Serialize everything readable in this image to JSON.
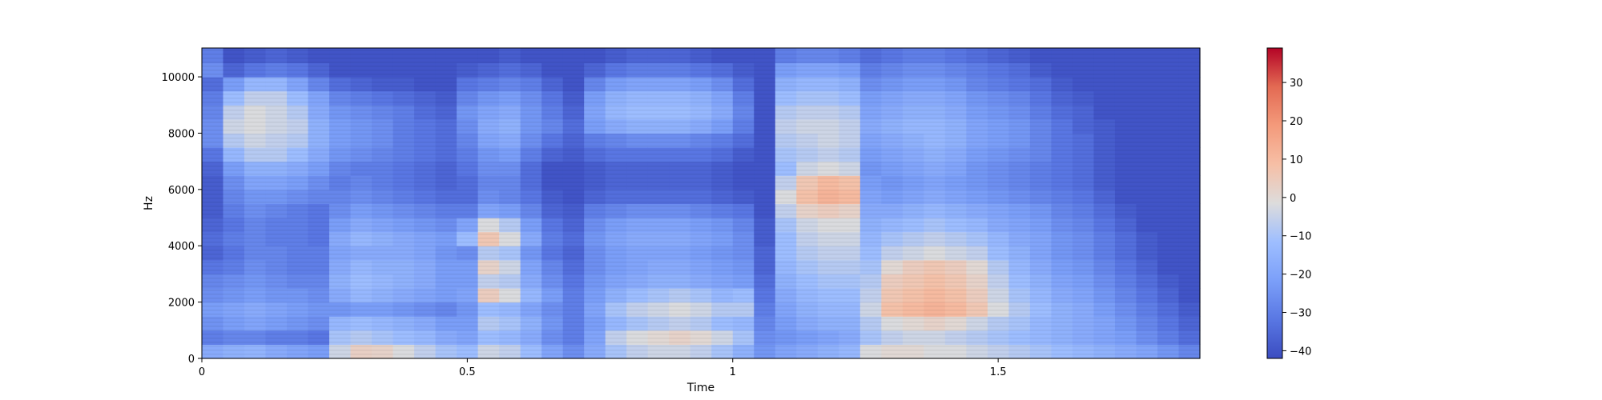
{
  "chart_data": {
    "type": "heatmap",
    "title": "",
    "xlabel": "Time",
    "ylabel": "Hz",
    "xlim": [
      0,
      1.88
    ],
    "ylim": [
      0,
      11025
    ],
    "x_ticks": [
      {
        "value": 0,
        "label": "0"
      },
      {
        "value": 0.5,
        "label": "0.5"
      },
      {
        "value": 1,
        "label": "1"
      },
      {
        "value": 1.5,
        "label": "1.5"
      }
    ],
    "y_ticks": [
      {
        "value": 0,
        "label": "0"
      },
      {
        "value": 2000,
        "label": "2000"
      },
      {
        "value": 4000,
        "label": "4000"
      },
      {
        "value": 6000,
        "label": "6000"
      },
      {
        "value": 8000,
        "label": "8000"
      },
      {
        "value": 10000,
        "label": "10000"
      }
    ],
    "colorbar": {
      "colormap": "coolwarm",
      "range": [
        -42,
        39
      ],
      "ticks": [
        {
          "value": 30,
          "label": "30"
        },
        {
          "value": 20,
          "label": "20"
        },
        {
          "value": 10,
          "label": "10"
        },
        {
          "value": 0,
          "label": "0"
        },
        {
          "value": -10,
          "label": "−10"
        },
        {
          "value": -20,
          "label": "−20"
        },
        {
          "value": -30,
          "label": "−30"
        },
        {
          "value": -40,
          "label": "−40"
        }
      ]
    },
    "time_bins": [
      0.0,
      0.04,
      0.08,
      0.12,
      0.16,
      0.2,
      0.24,
      0.28,
      0.32,
      0.36,
      0.4,
      0.44,
      0.48,
      0.52,
      0.56,
      0.6,
      0.64,
      0.68,
      0.72,
      0.76,
      0.8,
      0.84,
      0.88,
      0.92,
      0.96,
      1.0,
      1.04,
      1.08,
      1.12,
      1.16,
      1.2,
      1.24,
      1.28,
      1.32,
      1.36,
      1.4,
      1.44,
      1.48,
      1.52,
      1.56,
      1.6,
      1.64,
      1.68,
      1.72,
      1.76,
      1.8,
      1.84
    ],
    "frequency_bins": [
      0,
      500,
      1000,
      1500,
      2000,
      2500,
      3000,
      3500,
      4000,
      4500,
      5000,
      5500,
      6000,
      6500,
      7000,
      7500,
      8000,
      8500,
      9000,
      9500,
      10000,
      10500
    ],
    "values_db": [
      [
        -18,
        -30,
        -25,
        -22,
        -26,
        -28,
        -32,
        -36,
        -34,
        -36,
        -38,
        -38,
        -38,
        -36,
        -32,
        -26,
        -26,
        -28,
        -30,
        -34,
        -26,
        -30
      ],
      [
        -16,
        -28,
        -22,
        -20,
        -24,
        -26,
        -30,
        -32,
        -30,
        -32,
        -30,
        -28,
        -26,
        -22,
        -14,
        -8,
        -4,
        -6,
        -12,
        -22,
        -36,
        -40
      ],
      [
        -15,
        -28,
        -20,
        -18,
        -22,
        -24,
        -26,
        -28,
        -28,
        -28,
        -26,
        -24,
        -20,
        -16,
        -8,
        -4,
        -2,
        -2,
        -6,
        -14,
        -32,
        -38
      ],
      [
        -18,
        -30,
        -22,
        -20,
        -24,
        -26,
        -28,
        -28,
        -30,
        -30,
        -28,
        -24,
        -20,
        -16,
        -8,
        -6,
        -4,
        -4,
        -6,
        -14,
        -30,
        -36
      ],
      [
        -20,
        -30,
        -24,
        -22,
        -24,
        -28,
        -30,
        -30,
        -30,
        -30,
        -30,
        -26,
        -22,
        -18,
        -12,
        -8,
        -6,
        -8,
        -12,
        -20,
        -32,
        -38
      ],
      [
        -22,
        -32,
        -26,
        -24,
        -26,
        -28,
        -30,
        -30,
        -32,
        -32,
        -32,
        -28,
        -26,
        -22,
        -18,
        -16,
        -16,
        -18,
        -20,
        -28,
        -36,
        -40
      ],
      [
        -4,
        -10,
        -14,
        -24,
        -18,
        -16,
        -18,
        -20,
        -18,
        -22,
        -26,
        -28,
        -30,
        -28,
        -24,
        -22,
        -22,
        -24,
        -28,
        -34,
        -40,
        -40
      ],
      [
        3,
        -8,
        -12,
        -22,
        -14,
        -12,
        -14,
        -18,
        -14,
        -18,
        -22,
        -26,
        -28,
        -30,
        -26,
        -24,
        -24,
        -26,
        -30,
        -36,
        -40,
        -40
      ],
      [
        2,
        -10,
        -14,
        -22,
        -16,
        -14,
        -16,
        -18,
        -16,
        -20,
        -24,
        -28,
        -30,
        -30,
        -28,
        -26,
        -26,
        -28,
        -32,
        -38,
        -40,
        -40
      ],
      [
        -2,
        -12,
        -16,
        -24,
        -18,
        -16,
        -16,
        -18,
        -18,
        -22,
        -26,
        -30,
        -32,
        -32,
        -30,
        -30,
        -30,
        -30,
        -34,
        -38,
        -40,
        -40
      ],
      [
        -6,
        -14,
        -18,
        -26,
        -20,
        -18,
        -18,
        -20,
        -20,
        -24,
        -28,
        -32,
        -34,
        -34,
        -32,
        -32,
        -32,
        -34,
        -36,
        -40,
        -40,
        -40
      ],
      [
        -10,
        -18,
        -22,
        -28,
        -22,
        -22,
        -22,
        -24,
        -22,
        -26,
        -30,
        -34,
        -36,
        -36,
        -34,
        -34,
        -34,
        -36,
        -38,
        -40,
        -40,
        -40
      ],
      [
        -12,
        -20,
        -22,
        -24,
        -20,
        -22,
        -22,
        -26,
        -12,
        -20,
        -30,
        -34,
        -34,
        -32,
        -30,
        -28,
        -26,
        -24,
        -28,
        -32,
        -38,
        -40
      ],
      [
        -4,
        -12,
        -8,
        -12,
        4,
        -6,
        2,
        -8,
        6,
        -2,
        -20,
        -26,
        -28,
        -26,
        -24,
        -20,
        -18,
        -20,
        -24,
        -30,
        -36,
        -40
      ],
      [
        -6,
        -14,
        -10,
        -14,
        -2,
        -8,
        -4,
        -10,
        -2,
        -8,
        -22,
        -28,
        -28,
        -26,
        -22,
        -18,
        -16,
        -18,
        -22,
        -28,
        -34,
        -38
      ],
      [
        -12,
        -18,
        -16,
        -20,
        -14,
        -18,
        -20,
        -24,
        -18,
        -22,
        -28,
        -32,
        -34,
        -34,
        -30,
        -26,
        -24,
        -24,
        -26,
        -30,
        -36,
        -40
      ],
      [
        -20,
        -26,
        -24,
        -26,
        -22,
        -26,
        -28,
        -32,
        -30,
        -32,
        -36,
        -38,
        -40,
        -40,
        -36,
        -32,
        -28,
        -30,
        -32,
        -36,
        -40,
        -40
      ],
      [
        -26,
        -30,
        -30,
        -30,
        -30,
        -32,
        -34,
        -36,
        -34,
        -36,
        -38,
        -40,
        -40,
        -40,
        -38,
        -36,
        -34,
        -36,
        -38,
        -40,
        -40,
        -40
      ],
      [
        -18,
        -20,
        -22,
        -20,
        -22,
        -24,
        -26,
        -26,
        -24,
        -26,
        -30,
        -36,
        -38,
        -38,
        -34,
        -30,
        -22,
        -20,
        -22,
        -28,
        -36,
        -40
      ],
      [
        -10,
        -6,
        -14,
        -10,
        -16,
        -20,
        -22,
        -22,
        -20,
        -22,
        -28,
        -34,
        -36,
        -36,
        -32,
        -28,
        -18,
        -14,
        -16,
        -22,
        -32,
        -38
      ],
      [
        -6,
        -2,
        -10,
        -6,
        -12,
        -18,
        -20,
        -20,
        -18,
        -20,
        -26,
        -34,
        -36,
        -36,
        -32,
        -26,
        -16,
        -12,
        -14,
        -20,
        -30,
        -36
      ],
      [
        -4,
        0,
        -8,
        -4,
        -10,
        -16,
        -18,
        -20,
        -18,
        -20,
        -26,
        -34,
        -36,
        -36,
        -32,
        -26,
        -16,
        -12,
        -14,
        -20,
        -30,
        -36
      ],
      [
        -4,
        2,
        -6,
        -2,
        -8,
        -16,
        -18,
        -20,
        -18,
        -20,
        -26,
        -34,
        -36,
        -36,
        -32,
        -26,
        -16,
        -12,
        -14,
        -20,
        -30,
        -36
      ],
      [
        -6,
        0,
        -8,
        -4,
        -10,
        -18,
        -20,
        -22,
        -20,
        -22,
        -28,
        -34,
        -36,
        -36,
        -32,
        -28,
        -18,
        -14,
        -16,
        -22,
        -32,
        -38
      ],
      [
        -10,
        -4,
        -12,
        -8,
        -14,
        -20,
        -22,
        -24,
        -22,
        -24,
        -30,
        -36,
        -38,
        -38,
        -34,
        -30,
        -22,
        -18,
        -20,
        -26,
        -34,
        -40
      ],
      [
        -16,
        -10,
        -14,
        -8,
        -12,
        -22,
        -24,
        -26,
        -26,
        -28,
        -32,
        -38,
        -40,
        -40,
        -38,
        -34,
        -30,
        -28,
        -30,
        -34,
        -38,
        -40
      ],
      [
        -24,
        -26,
        -28,
        -30,
        -32,
        -34,
        -36,
        -36,
        -38,
        -38,
        -40,
        -40,
        -40,
        -40,
        -40,
        -40,
        -40,
        -40,
        -40,
        -40,
        -40,
        -40
      ],
      [
        -20,
        -24,
        -22,
        -20,
        -18,
        -16,
        -14,
        -12,
        -12,
        -10,
        -6,
        -2,
        -6,
        -12,
        -10,
        -8,
        -6,
        -8,
        -12,
        -16,
        -22,
        -30
      ],
      [
        -18,
        -22,
        -18,
        -16,
        -14,
        -12,
        -10,
        -8,
        -6,
        -4,
        2,
        8,
        6,
        -4,
        -8,
        -6,
        -4,
        -6,
        -10,
        -14,
        -20,
        -28
      ],
      [
        -16,
        -20,
        -16,
        -14,
        -12,
        -10,
        -8,
        -6,
        -4,
        -2,
        4,
        12,
        10,
        -2,
        -6,
        -4,
        -4,
        -6,
        -10,
        -14,
        -20,
        -28
      ],
      [
        -14,
        -18,
        -16,
        -14,
        -12,
        -10,
        -8,
        -6,
        -4,
        -2,
        2,
        10,
        8,
        -4,
        -8,
        -6,
        -6,
        -8,
        -12,
        -16,
        -22,
        -30
      ],
      [
        -2,
        -10,
        -8,
        -4,
        -6,
        -8,
        -10,
        -12,
        -14,
        -16,
        -18,
        -20,
        -22,
        -24,
        -22,
        -20,
        -18,
        -20,
        -22,
        -26,
        -30,
        -34
      ],
      [
        0,
        -6,
        -2,
        8,
        6,
        4,
        0,
        -6,
        -10,
        -14,
        -18,
        -22,
        -24,
        -22,
        -20,
        -18,
        -16,
        -18,
        -20,
        -24,
        -28,
        -32
      ],
      [
        0,
        -4,
        0,
        10,
        8,
        6,
        4,
        -4,
        -8,
        -12,
        -16,
        -20,
        -22,
        -20,
        -18,
        -16,
        -14,
        -16,
        -18,
        -22,
        -26,
        -30
      ],
      [
        -2,
        -4,
        2,
        12,
        10,
        8,
        6,
        -2,
        -6,
        -10,
        -14,
        -18,
        -20,
        -18,
        -16,
        -14,
        -14,
        -16,
        -18,
        -22,
        -26,
        -30
      ],
      [
        -2,
        -6,
        0,
        10,
        8,
        6,
        4,
        -4,
        -8,
        -12,
        -16,
        -20,
        -22,
        -20,
        -18,
        -16,
        -16,
        -18,
        -20,
        -24,
        -28,
        -32
      ],
      [
        -4,
        -8,
        -4,
        6,
        4,
        2,
        0,
        -6,
        -10,
        -14,
        -18,
        -22,
        -24,
        -24,
        -22,
        -20,
        -20,
        -22,
        -24,
        -28,
        -30,
        -34
      ],
      [
        -6,
        -10,
        -8,
        -2,
        -4,
        -6,
        -8,
        -12,
        -14,
        -18,
        -20,
        -24,
        -26,
        -26,
        -24,
        -22,
        -22,
        -24,
        -26,
        -30,
        -32,
        -36
      ],
      [
        -8,
        -12,
        -10,
        -8,
        -10,
        -12,
        -14,
        -16,
        -18,
        -20,
        -22,
        -26,
        -28,
        -28,
        -26,
        -24,
        -24,
        -26,
        -28,
        -32,
        -34,
        -38
      ],
      [
        -10,
        -14,
        -14,
        -12,
        -14,
        -16,
        -18,
        -20,
        -20,
        -22,
        -24,
        -28,
        -30,
        -30,
        -28,
        -28,
        -28,
        -30,
        -32,
        -34,
        -38,
        -40
      ],
      [
        -12,
        -16,
        -16,
        -16,
        -18,
        -20,
        -22,
        -24,
        -24,
        -26,
        -28,
        -30,
        -32,
        -32,
        -32,
        -32,
        -32,
        -34,
        -36,
        -38,
        -40,
        -40
      ],
      [
        -14,
        -18,
        -18,
        -18,
        -20,
        -22,
        -24,
        -26,
        -26,
        -28,
        -30,
        -32,
        -34,
        -34,
        -34,
        -34,
        -36,
        -36,
        -38,
        -40,
        -40,
        -40
      ],
      [
        -16,
        -20,
        -20,
        -22,
        -24,
        -26,
        -28,
        -30,
        -30,
        -32,
        -34,
        -36,
        -38,
        -38,
        -38,
        -38,
        -38,
        -40,
        -40,
        -40,
        -40,
        -40
      ],
      [
        -18,
        -22,
        -24,
        -26,
        -28,
        -30,
        -32,
        -34,
        -34,
        -36,
        -38,
        -40,
        -40,
        -40,
        -40,
        -40,
        -40,
        -40,
        -40,
        -40,
        -40,
        -40
      ],
      [
        -20,
        -26,
        -28,
        -30,
        -32,
        -34,
        -36,
        -38,
        -38,
        -40,
        -40,
        -40,
        -40,
        -40,
        -40,
        -40,
        -40,
        -40,
        -40,
        -40,
        -40,
        -40
      ],
      [
        -24,
        -30,
        -32,
        -34,
        -36,
        -38,
        -40,
        -40,
        -40,
        -40,
        -40,
        -40,
        -40,
        -40,
        -40,
        -40,
        -40,
        -40,
        -40,
        -40,
        -40,
        -40
      ],
      [
        -28,
        -34,
        -36,
        -38,
        -40,
        -40,
        -40,
        -40,
        -40,
        -40,
        -40,
        -40,
        -40,
        -40,
        -40,
        -40,
        -40,
        -40,
        -40,
        -40,
        -40,
        -40
      ]
    ]
  }
}
